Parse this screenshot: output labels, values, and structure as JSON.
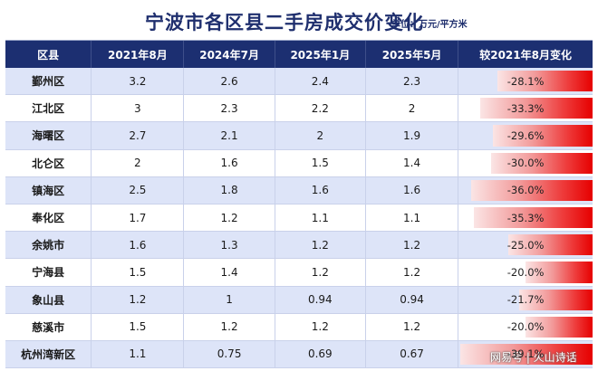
{
  "title": "宁波市各区县二手房成交价变化",
  "unit": "单位：万元/平方米",
  "headers": [
    "区县",
    "2021年8月",
    "2024年7月",
    "2025年1月",
    "2025年5月",
    "较2021年8月变化"
  ],
  "rows": [
    {
      "district": "鄞州区",
      "v2021_08": "3.2",
      "v2024_07": "2.6",
      "v2025_01": "2.4",
      "v2025_05": "2.3",
      "change": "-28.1%",
      "change_value": -28.1
    },
    {
      "district": "江北区",
      "v2021_08": "3",
      "v2024_07": "2.3",
      "v2025_01": "2.2",
      "v2025_05": "2",
      "change": "-33.3%",
      "change_value": -33.3
    },
    {
      "district": "海曙区",
      "v2021_08": "2.7",
      "v2024_07": "2.1",
      "v2025_01": "2",
      "v2025_05": "1.9",
      "change": "-29.6%",
      "change_value": -29.6
    },
    {
      "district": "北仑区",
      "v2021_08": "2",
      "v2024_07": "1.6",
      "v2025_01": "1.5",
      "v2025_05": "1.4",
      "change": "-30.0%",
      "change_value": -30.0
    },
    {
      "district": "镇海区",
      "v2021_08": "2.5",
      "v2024_07": "1.8",
      "v2025_01": "1.6",
      "v2025_05": "1.6",
      "change": "-36.0%",
      "change_value": -36.0
    },
    {
      "district": "奉化区",
      "v2021_08": "1.7",
      "v2024_07": "1.2",
      "v2025_01": "1.1",
      "v2025_05": "1.1",
      "change": "-35.3%",
      "change_value": -35.3
    },
    {
      "district": "余姚市",
      "v2021_08": "1.6",
      "v2024_07": "1.3",
      "v2025_01": "1.2",
      "v2025_05": "1.2",
      "change": "-25.0%",
      "change_value": -25.0
    },
    {
      "district": "宁海县",
      "v2021_08": "1.5",
      "v2024_07": "1.4",
      "v2025_01": "1.2",
      "v2025_05": "1.2",
      "change": "-20.0%",
      "change_value": -20.0
    },
    {
      "district": "象山县",
      "v2021_08": "1.2",
      "v2024_07": "1",
      "v2025_01": "0.94",
      "v2025_05": "0.94",
      "change": "-21.7%",
      "change_value": -21.7
    },
    {
      "district": "慈溪市",
      "v2021_08": "1.5",
      "v2024_07": "1.2",
      "v2025_01": "1.2",
      "v2025_05": "1.2",
      "change": "-20.0%",
      "change_value": -20.0
    },
    {
      "district": "杭州湾新区",
      "v2021_08": "1.1",
      "v2024_07": "0.75",
      "v2025_01": "0.69",
      "v2025_05": "0.67",
      "change": "-39.1%",
      "change_value": -39.1
    }
  ],
  "watermark": "网易号 | 火山诗话",
  "colors": {
    "title": "#1f2f6e",
    "header_bg": "#1c2f71",
    "row_alt": "#dde4f8",
    "bar_end": "#e60000"
  }
}
